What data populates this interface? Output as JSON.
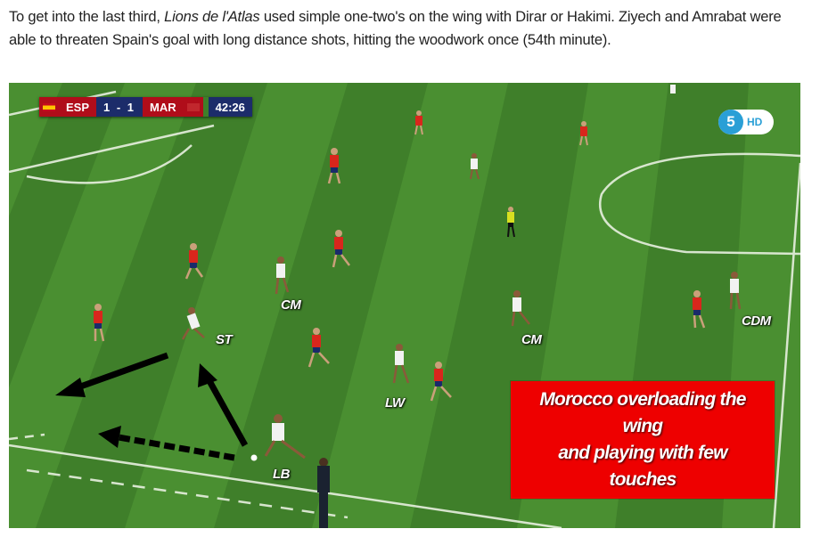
{
  "caption": {
    "part1": "To get into the last third, ",
    "italic": "Lions de l'Atlas",
    "part2": " used simple one-two's on the wing with Dirar or Hakimi. Ziyech and Amrabat were able to threaten Spain's goal with long distance shots, hitting the woodwork once (54th minute)."
  },
  "scoreboard": {
    "home": "ESP",
    "score": "1 - 1",
    "away": "MAR",
    "clock": "42:26",
    "home_color": "#b00d1a",
    "bar_color": "#1c2c6a"
  },
  "channel_logo": {
    "number": "5",
    "suffix": "HD"
  },
  "position_labels": [
    "CM",
    "ST",
    "CM",
    "CDM",
    "LW",
    "LB"
  ],
  "callout": {
    "text": "Morocco overloading the\nwing\nand playing with few\ntouches",
    "color": "#ee0000"
  },
  "pitch_colors": {
    "light": "#4a8f31",
    "dark": "#3f7f2a",
    "spain_kit": "#d9261c",
    "morocco_kit": "#f2f2f2"
  }
}
